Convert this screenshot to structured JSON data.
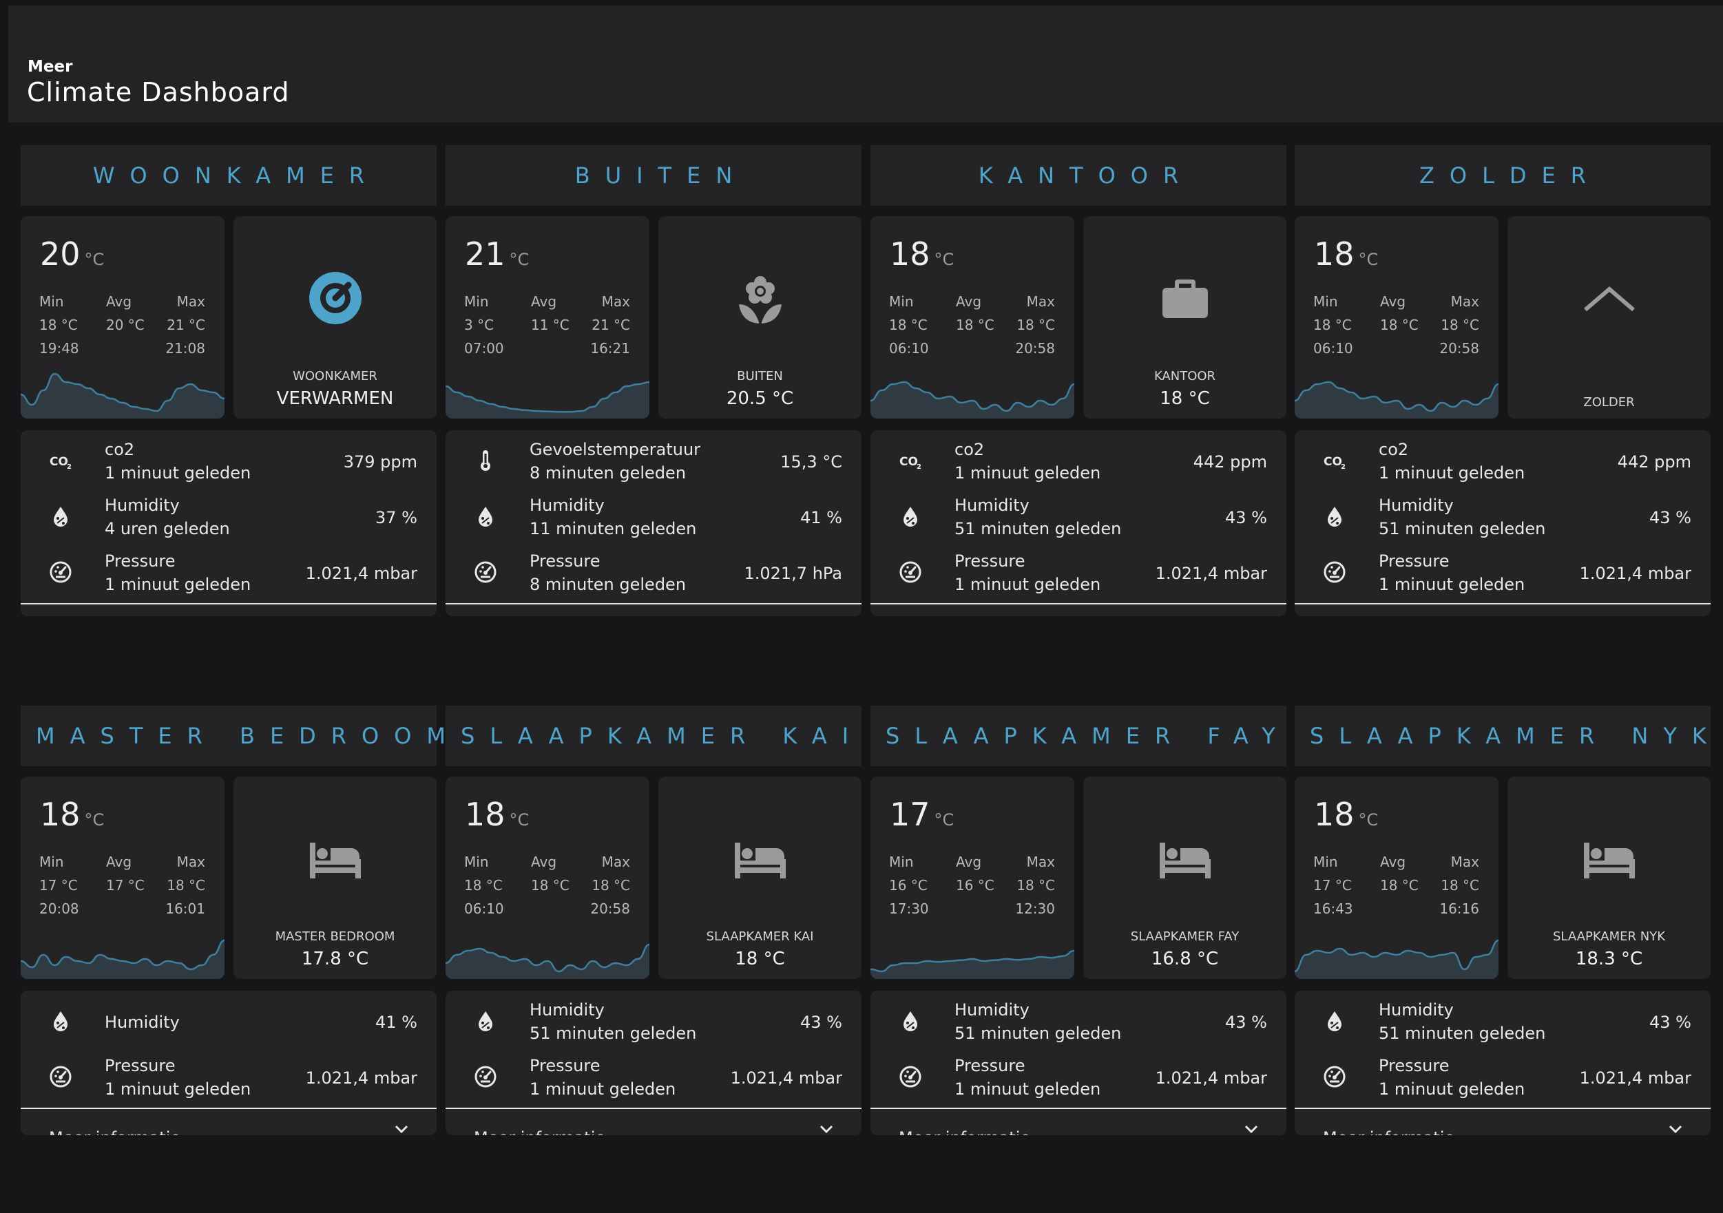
{
  "header": {
    "subtitle": "Meer",
    "title": "Climate Dashboard"
  },
  "labels": {
    "min": "Min",
    "avg": "Avg",
    "max": "Max",
    "more": "Meer informatie",
    "unit": "°C"
  },
  "rooms": [
    {
      "title": "WOONKAMER",
      "temp": "20",
      "min": "18 °C",
      "avg": "20 °C",
      "max": "21 °C",
      "min_time": "19:48",
      "max_time": "21:08",
      "spark": [
        0.45,
        0.2,
        0.55,
        0.95,
        0.75,
        0.7,
        0.6,
        0.45,
        0.35,
        0.25,
        0.15,
        0.1,
        0.05,
        0.3,
        0.6,
        0.7,
        0.55,
        0.5,
        0.35
      ],
      "icon": "thermostat-icon",
      "ent_name": "WOONKAMER",
      "ent_state": "VERWARMEN",
      "entities": [
        {
          "icon": "co2-icon",
          "name": "co2",
          "time": "1 minuut geleden",
          "value": "379 ppm"
        },
        {
          "icon": "humidity-icon",
          "name": "Humidity",
          "time": "4 uren geleden",
          "value": "37 %"
        },
        {
          "icon": "pressure-icon",
          "name": "Pressure",
          "time": "1 minuut geleden",
          "value": "1.021,4 mbar"
        }
      ]
    },
    {
      "title": "BUITEN",
      "temp": "21",
      "min": "3 °C",
      "avg": "11 °C",
      "max": "21 °C",
      "min_time": "07:00",
      "max_time": "16:21",
      "spark": [
        0.65,
        0.5,
        0.4,
        0.3,
        0.22,
        0.15,
        0.1,
        0.07,
        0.05,
        0.04,
        0.03,
        0.03,
        0.05,
        0.15,
        0.35,
        0.5,
        0.65,
        0.7,
        0.75
      ],
      "icon": "flower-icon",
      "ent_name": "BUITEN",
      "ent_state": "20.5 °C",
      "entities": [
        {
          "icon": "thermometer-icon",
          "name": "Gevoelstemperatuur",
          "time": "8 minuten geleden",
          "value": "15,3 °C"
        },
        {
          "icon": "humidity-icon",
          "name": "Humidity",
          "time": "11 minuten geleden",
          "value": "41 %"
        },
        {
          "icon": "pressure-icon",
          "name": "Pressure",
          "time": "8 minuten geleden",
          "value": "1.021,7 hPa"
        }
      ]
    },
    {
      "title": "KANTOOR",
      "temp": "18",
      "min": "18 °C",
      "avg": "18 °C",
      "max": "18 °C",
      "min_time": "06:10",
      "max_time": "20:58",
      "spark": [
        0.3,
        0.55,
        0.7,
        0.75,
        0.6,
        0.5,
        0.35,
        0.4,
        0.25,
        0.3,
        0.1,
        0.2,
        0.05,
        0.25,
        0.15,
        0.3,
        0.2,
        0.35,
        0.7
      ],
      "icon": "briefcase-icon",
      "ent_name": "KANTOOR",
      "ent_state": "18 °C",
      "entities": [
        {
          "icon": "co2-icon",
          "name": "co2",
          "time": "1 minuut geleden",
          "value": "442 ppm"
        },
        {
          "icon": "humidity-icon",
          "name": "Humidity",
          "time": "51 minuten geleden",
          "value": "43 %"
        },
        {
          "icon": "pressure-icon",
          "name": "Pressure",
          "time": "1 minuut geleden",
          "value": "1.021,4 mbar"
        }
      ]
    },
    {
      "title": "ZOLDER",
      "temp": "18",
      "min": "18 °C",
      "avg": "18 °C",
      "max": "18 °C",
      "min_time": "06:10",
      "max_time": "20:58",
      "spark": [
        0.3,
        0.55,
        0.7,
        0.75,
        0.6,
        0.5,
        0.35,
        0.4,
        0.25,
        0.3,
        0.1,
        0.2,
        0.05,
        0.25,
        0.15,
        0.3,
        0.2,
        0.35,
        0.7
      ],
      "icon": "roof-icon",
      "ent_name": "ZOLDER",
      "ent_state": "",
      "entities": [
        {
          "icon": "co2-icon",
          "name": "co2",
          "time": "1 minuut geleden",
          "value": "442 ppm"
        },
        {
          "icon": "humidity-icon",
          "name": "Humidity",
          "time": "51 minuten geleden",
          "value": "43 %"
        },
        {
          "icon": "pressure-icon",
          "name": "Pressure",
          "time": "1 minuut geleden",
          "value": "1.021,4 mbar"
        }
      ]
    },
    {
      "title": "MASTER BEDROOM",
      "temp": "18",
      "min": "17 °C",
      "avg": "17 °C",
      "max": "18 °C",
      "min_time": "20:08",
      "max_time": "16:01",
      "spark": [
        0.3,
        0.15,
        0.45,
        0.2,
        0.4,
        0.3,
        0.25,
        0.45,
        0.35,
        0.3,
        0.25,
        0.35,
        0.2,
        0.3,
        0.25,
        0.1,
        0.2,
        0.45,
        0.8
      ],
      "icon": "bed-icon",
      "ent_name": "MASTER BEDROOM",
      "ent_state": "17.8 °C",
      "entities": [
        {
          "icon": "humidity-icon",
          "name": "Humidity",
          "time": "",
          "value": "41 %"
        },
        {
          "icon": "pressure-icon",
          "name": "Pressure",
          "time": "1 minuut geleden",
          "value": "1.021,4 mbar"
        }
      ]
    },
    {
      "title": "SLAAPKAMER KAI",
      "temp": "18",
      "min": "18 °C",
      "avg": "18 °C",
      "max": "18 °C",
      "min_time": "06:10",
      "max_time": "20:58",
      "spark": [
        0.25,
        0.45,
        0.55,
        0.6,
        0.5,
        0.4,
        0.3,
        0.35,
        0.2,
        0.3,
        0.05,
        0.2,
        0.1,
        0.3,
        0.15,
        0.25,
        0.2,
        0.35,
        0.7
      ],
      "icon": "bed-icon",
      "ent_name": "SLAAPKAMER KAI",
      "ent_state": "18 °C",
      "entities": [
        {
          "icon": "humidity-icon",
          "name": "Humidity",
          "time": "51 minuten geleden",
          "value": "43 %"
        },
        {
          "icon": "pressure-icon",
          "name": "Pressure",
          "time": "1 minuut geleden",
          "value": "1.021,4 mbar"
        }
      ]
    },
    {
      "title": "SLAAPKAMER FAY",
      "temp": "17",
      "min": "16 °C",
      "avg": "16 °C",
      "max": "18 °C",
      "min_time": "17:30",
      "max_time": "12:30",
      "spark": [
        0.1,
        0.05,
        0.2,
        0.25,
        0.25,
        0.3,
        0.28,
        0.3,
        0.32,
        0.35,
        0.3,
        0.32,
        0.35,
        0.33,
        0.35,
        0.4,
        0.38,
        0.42,
        0.55
      ],
      "icon": "bed-icon",
      "ent_name": "SLAAPKAMER FAY",
      "ent_state": "16.8 °C",
      "entities": [
        {
          "icon": "humidity-icon",
          "name": "Humidity",
          "time": "51 minuten geleden",
          "value": "43 %"
        },
        {
          "icon": "pressure-icon",
          "name": "Pressure",
          "time": "1 minuut geleden",
          "value": "1.021,4 mbar"
        }
      ]
    },
    {
      "title": "SLAAPKAMER NYK",
      "temp": "18",
      "min": "17 °C",
      "avg": "18 °C",
      "max": "18 °C",
      "min_time": "16:43",
      "max_time": "16:16",
      "spark": [
        0.05,
        0.45,
        0.55,
        0.5,
        0.6,
        0.45,
        0.5,
        0.4,
        0.5,
        0.45,
        0.55,
        0.5,
        0.4,
        0.45,
        0.5,
        0.1,
        0.4,
        0.45,
        0.8
      ],
      "icon": "bed-icon",
      "ent_name": "SLAAPKAMER NYK",
      "ent_state": "18.3 °C",
      "entities": [
        {
          "icon": "humidity-icon",
          "name": "Humidity",
          "time": "51 minuten geleden",
          "value": "43 %"
        },
        {
          "icon": "pressure-icon",
          "name": "Pressure",
          "time": "1 minuut geleden",
          "value": "1.021,4 mbar"
        }
      ]
    }
  ]
}
